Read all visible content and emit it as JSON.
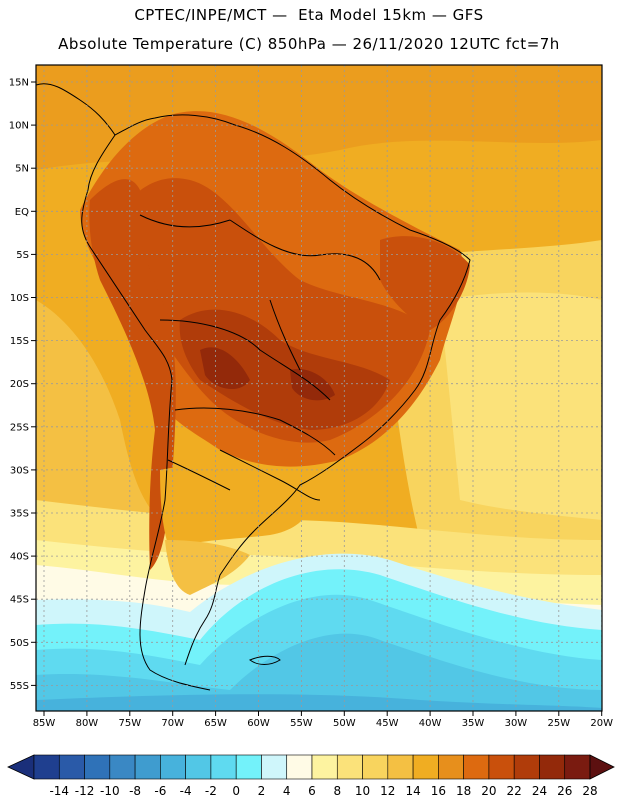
{
  "title": {
    "line1": "CPTEC/INPE/MCT —  Eta Model 15km — GFS",
    "line2": "Absolute Temperature (C) 850hPa — 26/11/2020 12UTC fct=7h"
  },
  "axes": {
    "lon_labels": [
      "85W",
      "80W",
      "75W",
      "70W",
      "65W",
      "60W",
      "55W",
      "50W",
      "45W",
      "40W",
      "35W",
      "30W",
      "25W",
      "20W"
    ],
    "lat_labels": [
      "15N",
      "10N",
      "5N",
      "EQ",
      "5S",
      "10S",
      "15S",
      "20S",
      "25S",
      "30S",
      "35S",
      "40S",
      "45S",
      "50S",
      "55S"
    ]
  },
  "colorbar": {
    "labels": [
      "-14",
      "-12",
      "-10",
      "-8",
      "-6",
      "-4",
      "-2",
      "0",
      "2",
      "4",
      "6",
      "8",
      "10",
      "12",
      "14",
      "16",
      "18",
      "20",
      "22",
      "24",
      "26",
      "28"
    ],
    "colors": [
      "#1f3f8f",
      "#2a5aa8",
      "#2f72b8",
      "#3a88c4",
      "#3f9ccf",
      "#47b2dc",
      "#52c7e6",
      "#5fdaf0",
      "#73f2fa",
      "#cff6fb",
      "#fffbe6",
      "#fdf3a0",
      "#fbe27a",
      "#f8d45e",
      "#f4c043",
      "#f0ad22",
      "#e78f1c",
      "#dd6a10",
      "#c9500c",
      "#b03c0a",
      "#93290a",
      "#7a1b10"
    ],
    "low_arrow_color": "#1a2f7a",
    "high_arrow_color": "#5c1010"
  },
  "chart_data": {
    "type": "heatmap",
    "variable": "Absolute Temperature (C) 850hPa",
    "model": "Eta Model 15km - GFS",
    "run": "26/11/2020 12UTC",
    "forecast": "fct=7h",
    "lon_range": [
      -86,
      -19.5
    ],
    "lat_range": [
      16.5,
      -58.5
    ],
    "contour_levels": [
      -14,
      -12,
      -10,
      -8,
      -6,
      -4,
      -2,
      0,
      2,
      4,
      6,
      8,
      10,
      12,
      14,
      16,
      18,
      20,
      22,
      24,
      26,
      28
    ],
    "grid": true
  }
}
